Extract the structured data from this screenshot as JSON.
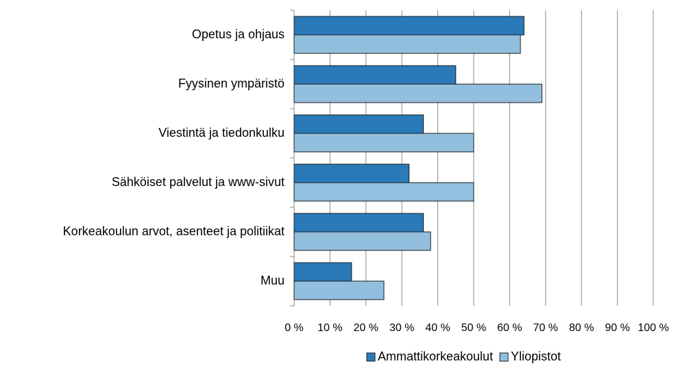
{
  "chart_data": {
    "type": "bar",
    "orientation": "horizontal",
    "categories": [
      "Opetus ja ohjaus",
      "Fyysinen ympäristö",
      "Viestintä ja tiedonkulku",
      "Sähköiset palvelut ja www-sivut",
      "Korkeakoulun arvot, asenteet ja politiikat",
      "Muu"
    ],
    "series": [
      {
        "name": "Ammattikorkeakoulut",
        "color": "#2a7ab9",
        "values": [
          64,
          45,
          36,
          32,
          36,
          16
        ]
      },
      {
        "name": "Yliopistot",
        "color": "#93bfdf",
        "values": [
          63,
          69,
          50,
          50,
          38,
          25
        ]
      }
    ],
    "xlim": [
      0,
      100
    ],
    "xticks": [
      {
        "value": 0,
        "label": "0 %"
      },
      {
        "value": 10,
        "label": "10 %"
      },
      {
        "value": 20,
        "label": "20 %"
      },
      {
        "value": 30,
        "label": "30 %"
      },
      {
        "value": 40,
        "label": "40 %"
      },
      {
        "value": 50,
        "label": "50 %"
      },
      {
        "value": 60,
        "label": "60 %"
      },
      {
        "value": 70,
        "label": "70 %"
      },
      {
        "value": 80,
        "label": "80 %"
      },
      {
        "value": 90,
        "label": "90 %"
      },
      {
        "value": 100,
        "label": "100 %"
      }
    ],
    "grid": true,
    "legend": "bottom"
  }
}
